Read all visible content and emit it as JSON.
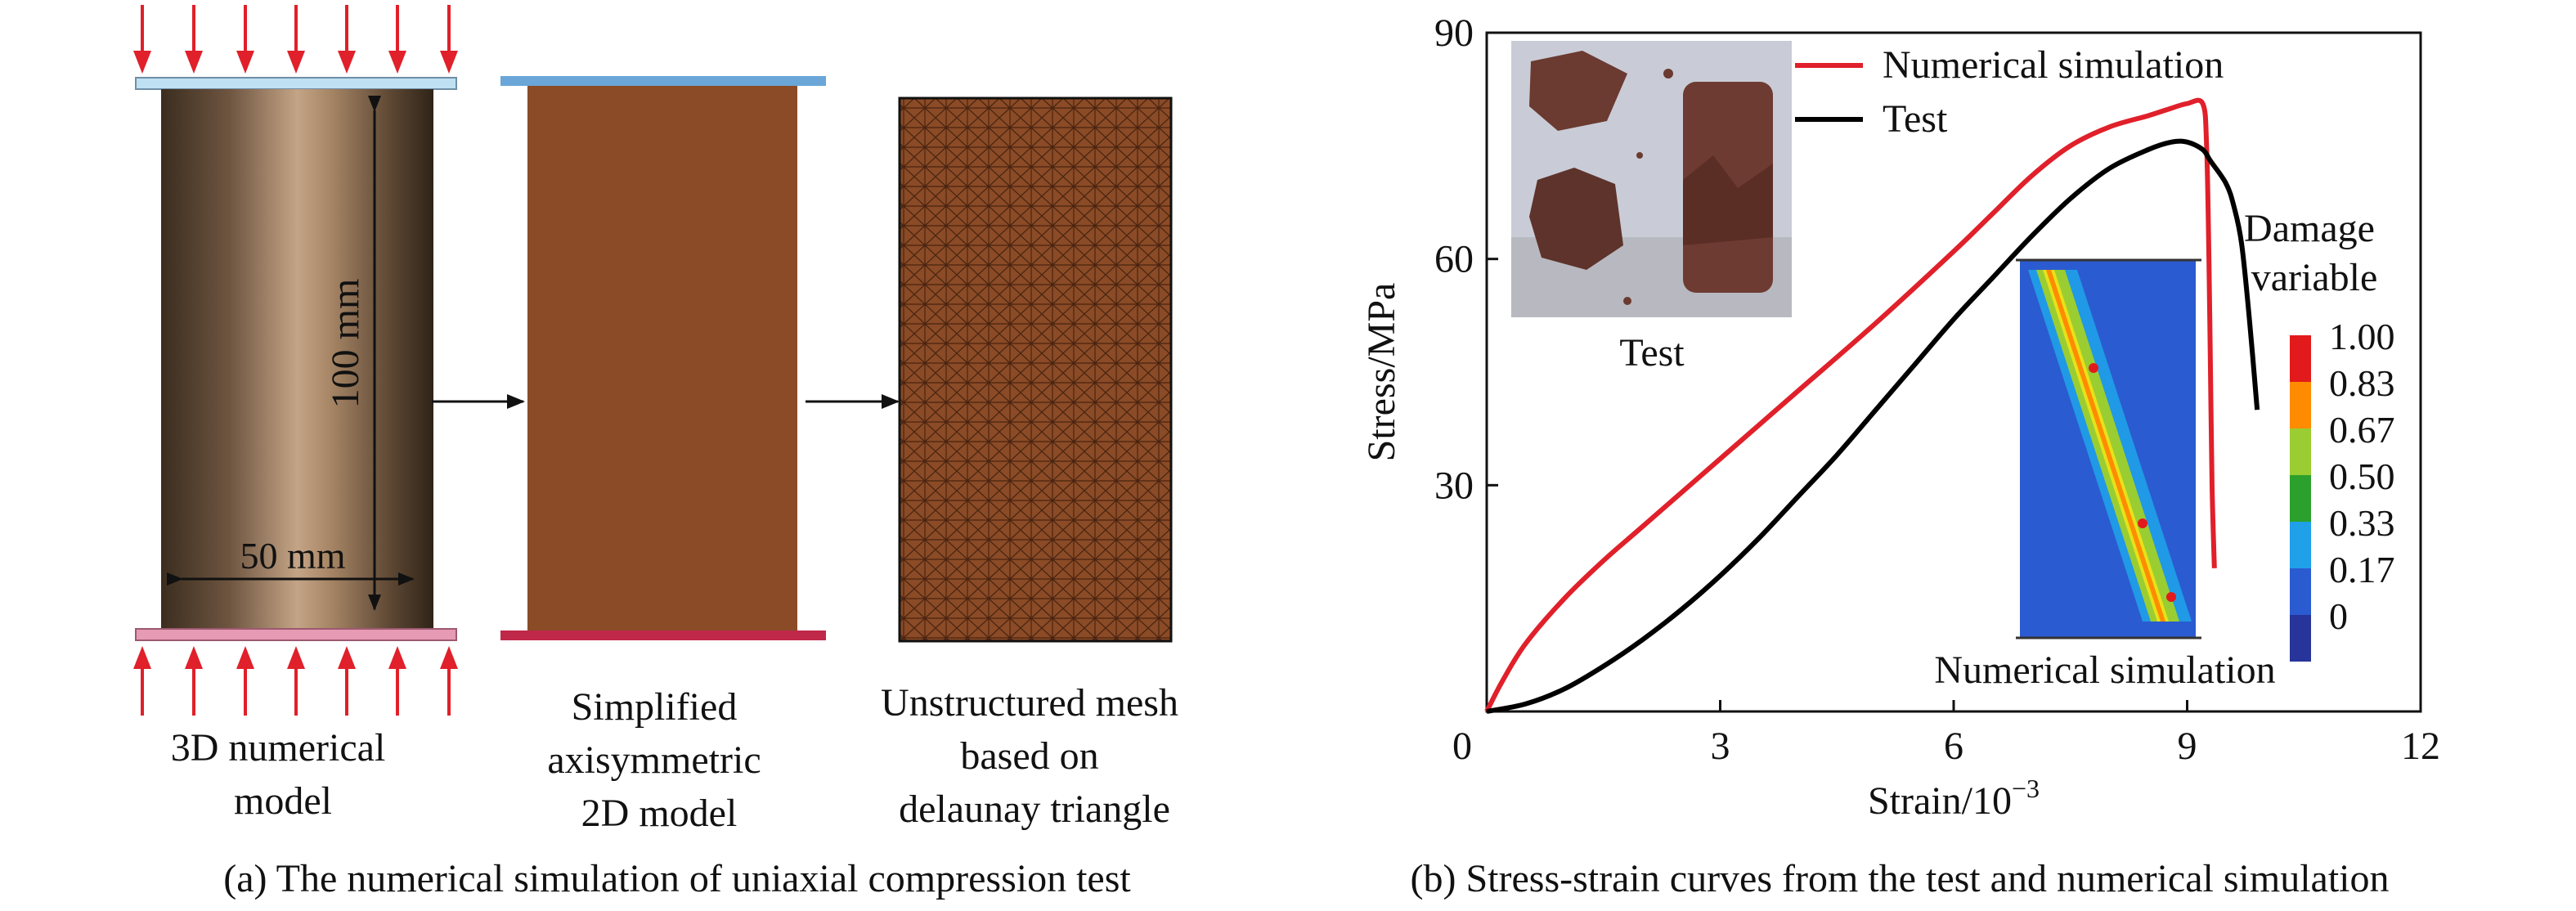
{
  "panel_a": {
    "dimension_height": "100 mm",
    "dimension_width": "50 mm",
    "label_3d": [
      "3D numerical",
      "model"
    ],
    "label_2d": [
      "Simplified",
      "axisymmetric",
      "2D model"
    ],
    "label_mesh": [
      "Unstructured mesh",
      "based on",
      "delaunay triangle"
    ],
    "caption": "(a) The numerical simulation of uniaxial compression test"
  },
  "panel_b": {
    "caption": "(b) Stress-strain curves from the test and numerical simulation",
    "inset_test_label": "Test",
    "inset_sim_label": "Numerical simulation",
    "colorbar_title": [
      "Damage",
      "variable"
    ],
    "colorbar_ticks": [
      "1.00",
      "0.83",
      "0.67",
      "0.50",
      "0.33",
      "0.17",
      "0"
    ]
  },
  "colors": {
    "simulation": "#e0202a",
    "test": "#000000",
    "brown": "#8a4b26",
    "plate_top": "#6aa6d8",
    "plate_bottom": "#c0284a",
    "arrow": "#e0202a",
    "colorbar": [
      "#e31a1c",
      "#ff8c00",
      "#9acd32",
      "#2ca02c",
      "#1fa0e8",
      "#2b5bd0",
      "#27359a"
    ]
  },
  "chart_data": {
    "type": "line",
    "title": "",
    "xlabel": "Strain/10",
    "xlabel_exponent": "−3",
    "ylabel": "Stress/MPa",
    "xlim": [
      0,
      12
    ],
    "ylim": [
      0,
      90
    ],
    "xticks": [
      0,
      3,
      6,
      9,
      12
    ],
    "yticks": [
      30,
      60,
      90
    ],
    "legend_position": "top-right",
    "series": [
      {
        "name": "Numerical simulation",
        "color": "#e0202a",
        "x": [
          0,
          0.2,
          0.5,
          1.0,
          1.5,
          2.0,
          3.0,
          4.0,
          5.0,
          6.0,
          6.5,
          7.0,
          7.5,
          8.0,
          8.5,
          8.8,
          9.0,
          9.2,
          9.25,
          9.28,
          9.3,
          9.32,
          9.35
        ],
        "y": [
          0,
          4,
          9,
          15,
          20,
          24.5,
          33.5,
          42.5,
          51.5,
          61,
          66,
          71,
          75,
          77.5,
          79,
          80,
          80.6,
          80.6,
          75,
          60,
          45,
          30,
          19
        ]
      },
      {
        "name": "Test",
        "color": "#000000",
        "x": [
          0,
          0.5,
          1.0,
          1.5,
          2.0,
          2.5,
          3.0,
          3.5,
          4.0,
          4.5,
          5.0,
          5.5,
          6.0,
          6.5,
          7.0,
          7.5,
          8.0,
          8.5,
          8.8,
          9.0,
          9.2,
          9.3,
          9.5,
          9.6,
          9.7,
          9.8,
          9.9
        ],
        "y": [
          0,
          1,
          3,
          6,
          9.5,
          13.5,
          18,
          23,
          28.5,
          34,
          40,
          46,
          52,
          57.5,
          63,
          68,
          72,
          74.5,
          75.5,
          75.5,
          74.5,
          73,
          70,
          67,
          62,
          52,
          40
        ]
      }
    ]
  }
}
